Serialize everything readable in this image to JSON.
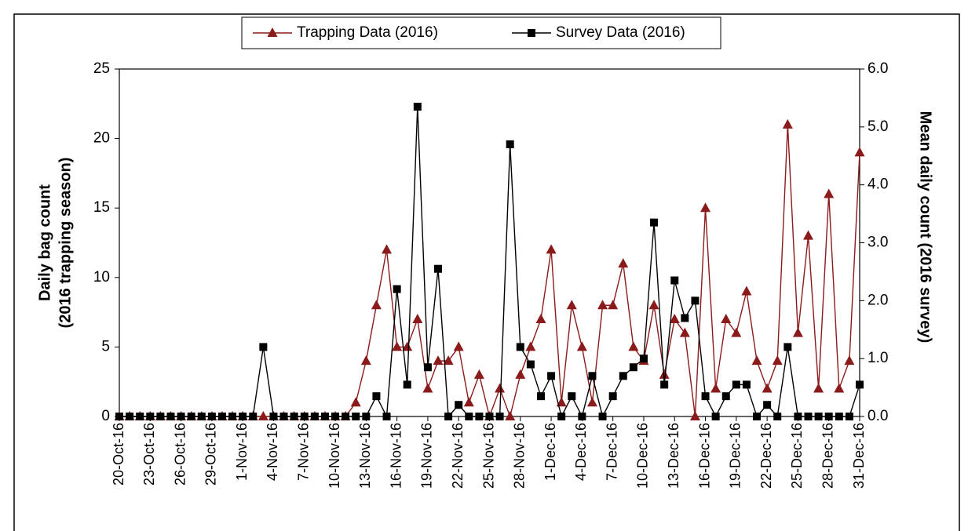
{
  "chart_data": {
    "type": "line",
    "categories": [
      "20-Oct-16",
      null,
      null,
      "23-Oct-16",
      null,
      null,
      "26-Oct-16",
      null,
      null,
      "29-Oct-16",
      null,
      null,
      "1-Nov-16",
      null,
      null,
      "4-Nov-16",
      null,
      null,
      "7-Nov-16",
      null,
      null,
      "10-Nov-16",
      null,
      null,
      "13-Nov-16",
      null,
      null,
      "16-Nov-16",
      null,
      null,
      "19-Nov-16",
      null,
      null,
      "22-Nov-16",
      null,
      null,
      "25-Nov-16",
      null,
      null,
      "28-Nov-16",
      null,
      null,
      "1-Dec-16",
      null,
      null,
      "4-Dec-16",
      null,
      null,
      "7-Dec-16",
      null,
      null,
      "10-Dec-16",
      null,
      null,
      "13-Dec-16",
      null,
      null,
      "16-Dec-16",
      null,
      null,
      "19-Dec-16",
      null,
      null,
      "22-Dec-16",
      null,
      null,
      "25-Dec-16",
      null,
      null,
      "28-Dec-16",
      null,
      null,
      "31-Dec-16"
    ],
    "series": [
      {
        "name": "Trapping Data (2016)",
        "color": "#8b1a1a",
        "marker": "triangle",
        "values": [
          0,
          0,
          0,
          0,
          0,
          0,
          0,
          0,
          0,
          0,
          0,
          0,
          0,
          0,
          0,
          0,
          0,
          0,
          0,
          0,
          0,
          0,
          0,
          1,
          4,
          8,
          12,
          5,
          5,
          7,
          2,
          4,
          4,
          5,
          1,
          3,
          0,
          2,
          0,
          3,
          5,
          7,
          12,
          1,
          8,
          5,
          1,
          8,
          8,
          11,
          5,
          4,
          8,
          3,
          7,
          6,
          0,
          15,
          2,
          7,
          6,
          9,
          4,
          2,
          4,
          21,
          6,
          13,
          2,
          16,
          2,
          4,
          19
        ]
      },
      {
        "name": "Survey Data (2016)",
        "color": "#000000",
        "marker": "square",
        "axis": "y2",
        "values": [
          0,
          0,
          0,
          0,
          0,
          0,
          0,
          0,
          0,
          0,
          0,
          0,
          0,
          0,
          1.2,
          0,
          0,
          0,
          0,
          0,
          0,
          0,
          0,
          0,
          0,
          0.35,
          0,
          2.2,
          0.55,
          5.35,
          0.85,
          2.55,
          0,
          0.2,
          0,
          0,
          0,
          0,
          4.7,
          1.2,
          0.9,
          0.35,
          0.7,
          0,
          0.35,
          0,
          0.7,
          0,
          0.35,
          0.7,
          0.85,
          1.0,
          3.35,
          0.55,
          2.35,
          1.7,
          2.0,
          0.35,
          0,
          0.35,
          0.55,
          0.55,
          0,
          0.2,
          0,
          1.2,
          0,
          0,
          0,
          0,
          0,
          0,
          0.55
        ]
      }
    ],
    "y_label": [
      "Daily bag count",
      "(2016 trapping season)"
    ],
    "y2_label": "Mean daily count (2016 survey)",
    "ylim": [
      0,
      25
    ],
    "yticks": [
      0,
      5,
      10,
      15,
      20,
      25
    ],
    "y2lim": [
      0,
      6
    ],
    "y2ticks": [
      {
        "value": 0,
        "label": "0.0"
      },
      {
        "value": 1,
        "label": "1.0"
      },
      {
        "value": 2,
        "label": "2.0"
      },
      {
        "value": 3,
        "label": "3.0"
      },
      {
        "value": 4,
        "label": "4.0"
      },
      {
        "value": 5,
        "label": "5.0"
      },
      {
        "value": 6,
        "label": "6.0"
      }
    ],
    "grid": false,
    "legend": "top"
  }
}
